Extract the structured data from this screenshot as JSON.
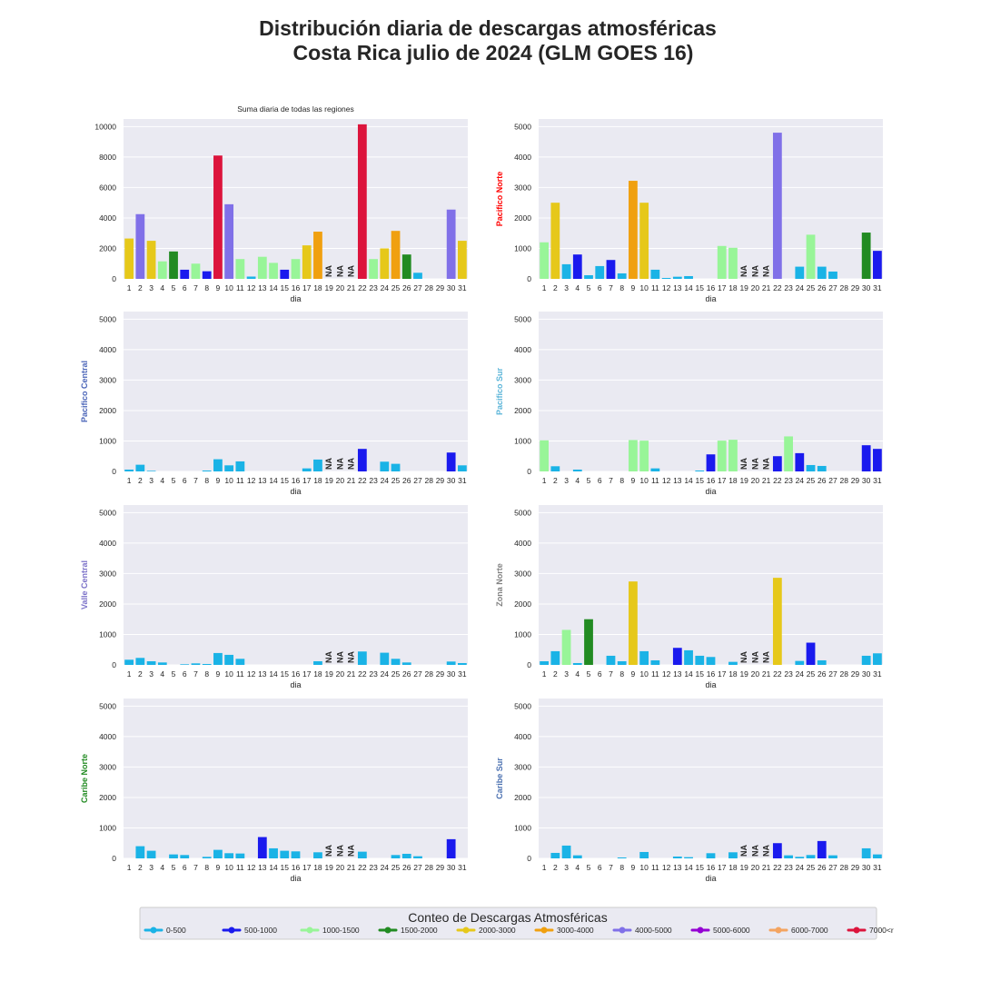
{
  "figure": {
    "title_line1": "Distribución diaria de descargas atmosféricas",
    "title_line2": "Costa Rica julio de 2024 (GLM GOES 16)"
  },
  "legend": {
    "title": "Conteo de Descargas Atmosféricas",
    "items": [
      {
        "label": "0-500",
        "color": "#1ab3e6"
      },
      {
        "label": "500-1000",
        "color": "#1a1aee"
      },
      {
        "label": "1000-1500",
        "color": "#98f598"
      },
      {
        "label": "1500-2000",
        "color": "#228B22"
      },
      {
        "label": "2000-3000",
        "color": "#e6c81a"
      },
      {
        "label": "3000-4000",
        "color": "#f0a010"
      },
      {
        "label": "4000-5000",
        "color": "#8070e8"
      },
      {
        "label": "5000-6000",
        "color": "#9400d3"
      },
      {
        "label": "6000-7000",
        "color": "#f4a460"
      },
      {
        "label": "7000<r",
        "color": "#dc143c"
      }
    ]
  },
  "chart_data": [
    {
      "type": "bar",
      "title": "Suma diaria de todas las regiones",
      "ylabel": "",
      "ylabel_color": "#333333",
      "xlabel": "dia",
      "ylim": [
        0,
        10500
      ],
      "yticks": [
        0,
        2000,
        4000,
        6000,
        8000,
        10000
      ],
      "categories": [
        "1",
        "2",
        "3",
        "4",
        "5",
        "6",
        "7",
        "8",
        "9",
        "10",
        "11",
        "12",
        "13",
        "14",
        "15",
        "16",
        "17",
        "18",
        "19",
        "20",
        "21",
        "22",
        "23",
        "24",
        "25",
        "26",
        "27",
        "28",
        "29",
        "30",
        "31"
      ],
      "values": [
        2650,
        4250,
        2500,
        1150,
        1800,
        600,
        1000,
        500,
        8100,
        4900,
        1300,
        150,
        1450,
        1050,
        600,
        1300,
        2200,
        3100,
        null,
        null,
        null,
        10150,
        1300,
        2000,
        3150,
        1600,
        400,
        0,
        0,
        4550,
        2500
      ],
      "na_label": "NA"
    },
    {
      "type": "bar",
      "title": "",
      "ylabel": "Pacifico Norte",
      "ylabel_color": "#ff0000",
      "xlabel": "dia",
      "ylim": [
        0,
        5250
      ],
      "yticks": [
        0,
        1000,
        2000,
        3000,
        4000,
        5000
      ],
      "categories": [
        "1",
        "2",
        "3",
        "4",
        "5",
        "6",
        "7",
        "8",
        "9",
        "10",
        "11",
        "12",
        "13",
        "14",
        "15",
        "16",
        "17",
        "18",
        "19",
        "20",
        "21",
        "22",
        "23",
        "24",
        "25",
        "26",
        "27",
        "28",
        "29",
        "30",
        "31"
      ],
      "values": [
        1200,
        2500,
        480,
        800,
        120,
        420,
        620,
        180,
        3220,
        2500,
        300,
        30,
        70,
        90,
        0,
        0,
        1080,
        1020,
        null,
        null,
        null,
        4800,
        0,
        400,
        1450,
        400,
        240,
        0,
        0,
        1520,
        920
      ],
      "na_label": "NA"
    },
    {
      "type": "bar",
      "title": "",
      "ylabel": "Pacifico Central",
      "ylabel_color": "#4a64b8",
      "xlabel": "dia",
      "ylim": [
        0,
        5250
      ],
      "yticks": [
        0,
        1000,
        2000,
        3000,
        4000,
        5000
      ],
      "categories": [
        "1",
        "2",
        "3",
        "4",
        "5",
        "6",
        "7",
        "8",
        "9",
        "10",
        "11",
        "12",
        "13",
        "14",
        "15",
        "16",
        "17",
        "18",
        "19",
        "20",
        "21",
        "22",
        "23",
        "24",
        "25",
        "26",
        "27",
        "28",
        "29",
        "30",
        "31"
      ],
      "values": [
        60,
        220,
        20,
        0,
        0,
        0,
        0,
        30,
        400,
        200,
        330,
        0,
        0,
        0,
        0,
        0,
        100,
        390,
        null,
        null,
        null,
        740,
        0,
        320,
        250,
        0,
        0,
        0,
        0,
        620,
        200
      ],
      "na_label": "NA"
    },
    {
      "type": "bar",
      "title": "",
      "ylabel": "Pacifico Sur",
      "ylabel_color": "#5ab4d8",
      "xlabel": "dia",
      "ylim": [
        0,
        5250
      ],
      "yticks": [
        0,
        1000,
        2000,
        3000,
        4000,
        5000
      ],
      "categories": [
        "1",
        "2",
        "3",
        "4",
        "5",
        "6",
        "7",
        "8",
        "9",
        "10",
        "11",
        "12",
        "13",
        "14",
        "15",
        "16",
        "17",
        "18",
        "19",
        "20",
        "21",
        "22",
        "23",
        "24",
        "25",
        "26",
        "27",
        "28",
        "29",
        "30",
        "31"
      ],
      "values": [
        1020,
        170,
        0,
        60,
        0,
        0,
        0,
        0,
        1030,
        1010,
        100,
        0,
        0,
        0,
        30,
        560,
        1010,
        1040,
        null,
        null,
        null,
        500,
        1150,
        600,
        210,
        180,
        0,
        0,
        0,
        860,
        740
      ],
      "na_label": "NA"
    },
    {
      "type": "bar",
      "title": "",
      "ylabel": "Valle Central",
      "ylabel_color": "#7a70c8",
      "xlabel": "dia",
      "ylim": [
        0,
        5250
      ],
      "yticks": [
        0,
        1000,
        2000,
        3000,
        4000,
        5000
      ],
      "categories": [
        "1",
        "2",
        "3",
        "4",
        "5",
        "6",
        "7",
        "8",
        "9",
        "10",
        "11",
        "12",
        "13",
        "14",
        "15",
        "16",
        "17",
        "18",
        "19",
        "20",
        "21",
        "22",
        "23",
        "24",
        "25",
        "26",
        "27",
        "28",
        "29",
        "30",
        "31"
      ],
      "values": [
        170,
        230,
        120,
        80,
        0,
        20,
        50,
        30,
        390,
        330,
        200,
        0,
        0,
        0,
        0,
        0,
        0,
        120,
        null,
        null,
        null,
        440,
        0,
        400,
        200,
        80,
        0,
        0,
        0,
        110,
        60
      ],
      "na_label": "NA"
    },
    {
      "type": "bar",
      "title": "",
      "ylabel": "Zona Norte",
      "ylabel_color": "#808080",
      "xlabel": "dia",
      "ylim": [
        0,
        5250
      ],
      "yticks": [
        0,
        1000,
        2000,
        3000,
        4000,
        5000
      ],
      "categories": [
        "1",
        "2",
        "3",
        "4",
        "5",
        "6",
        "7",
        "8",
        "9",
        "10",
        "11",
        "12",
        "13",
        "14",
        "15",
        "16",
        "17",
        "18",
        "19",
        "20",
        "21",
        "22",
        "23",
        "24",
        "25",
        "26",
        "27",
        "28",
        "29",
        "30",
        "31"
      ],
      "values": [
        120,
        450,
        1150,
        60,
        1500,
        0,
        300,
        120,
        2740,
        450,
        150,
        0,
        560,
        480,
        300,
        260,
        0,
        100,
        null,
        null,
        null,
        2860,
        0,
        130,
        730,
        150,
        0,
        0,
        0,
        300,
        380
      ],
      "na_label": "NA"
    },
    {
      "type": "bar",
      "title": "",
      "ylabel": "Caribe Norte",
      "ylabel_color": "#228B22",
      "xlabel": "dia",
      "ylim": [
        0,
        5250
      ],
      "yticks": [
        0,
        1000,
        2000,
        3000,
        4000,
        5000
      ],
      "categories": [
        "1",
        "2",
        "3",
        "4",
        "5",
        "6",
        "7",
        "8",
        "9",
        "10",
        "11",
        "12",
        "13",
        "14",
        "15",
        "16",
        "17",
        "18",
        "19",
        "20",
        "21",
        "22",
        "23",
        "24",
        "25",
        "26",
        "27",
        "28",
        "29",
        "30",
        "31"
      ],
      "values": [
        0,
        400,
        250,
        0,
        130,
        110,
        0,
        50,
        280,
        170,
        160,
        0,
        700,
        330,
        250,
        230,
        0,
        200,
        null,
        null,
        null,
        220,
        0,
        0,
        110,
        150,
        70,
        0,
        0,
        630,
        0
      ],
      "na_label": "NA"
    },
    {
      "type": "bar",
      "title": "",
      "ylabel": "Caribe Sur",
      "ylabel_color": "#4a70b0",
      "xlabel": "dia",
      "ylim": [
        0,
        5250
      ],
      "yticks": [
        0,
        1000,
        2000,
        3000,
        4000,
        5000
      ],
      "categories": [
        "1",
        "2",
        "3",
        "4",
        "5",
        "6",
        "7",
        "8",
        "9",
        "10",
        "11",
        "12",
        "13",
        "14",
        "15",
        "16",
        "17",
        "18",
        "19",
        "20",
        "21",
        "22",
        "23",
        "24",
        "25",
        "26",
        "27",
        "28",
        "29",
        "30",
        "31"
      ],
      "values": [
        0,
        180,
        420,
        100,
        0,
        0,
        0,
        30,
        0,
        210,
        0,
        0,
        60,
        40,
        0,
        170,
        0,
        200,
        null,
        null,
        null,
        500,
        100,
        50,
        110,
        570,
        100,
        0,
        0,
        330,
        130
      ],
      "na_label": "NA"
    }
  ]
}
